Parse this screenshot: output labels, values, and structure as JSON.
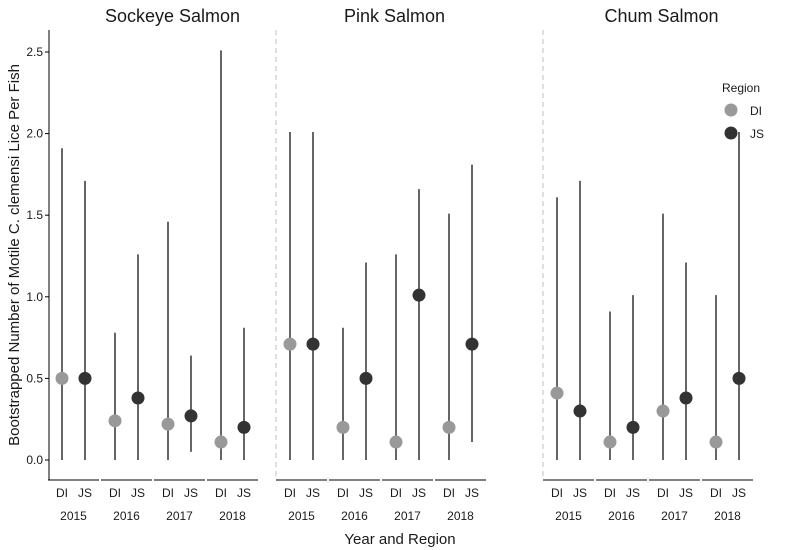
{
  "chart_data": {
    "type": "point-range",
    "ylabel": "Bootstrapped Number of Motile C. clemensi Lice Per Fish",
    "xlabel": "Year and Region",
    "ylim": [
      0,
      2.6
    ],
    "yticks": [
      "0.0",
      "0.5",
      "1.0",
      "1.5",
      "2.0",
      "2.5"
    ],
    "ytick_values": [
      0,
      0.5,
      1.0,
      1.5,
      2.0,
      2.5
    ],
    "years": [
      "2015",
      "2016",
      "2017",
      "2018"
    ],
    "regions": [
      "DI",
      "JS"
    ],
    "grid": false,
    "legend": {
      "title": "Region",
      "position": "top-right",
      "entries": [
        {
          "label": "DI",
          "color": "#999999"
        },
        {
          "label": "JS",
          "color": "#333333"
        }
      ]
    },
    "panels": [
      {
        "title": "Sockeye Salmon",
        "data": [
          {
            "year": "2015",
            "region": "DI",
            "mean": 0.5,
            "low": 0.0,
            "high": 1.91
          },
          {
            "year": "2015",
            "region": "JS",
            "mean": 0.5,
            "low": 0.0,
            "high": 1.71
          },
          {
            "year": "2016",
            "region": "DI",
            "mean": 0.24,
            "low": 0.0,
            "high": 0.78
          },
          {
            "year": "2016",
            "region": "JS",
            "mean": 0.38,
            "low": 0.0,
            "high": 1.26
          },
          {
            "year": "2017",
            "region": "DI",
            "mean": 0.22,
            "low": 0.0,
            "high": 1.46
          },
          {
            "year": "2017",
            "region": "JS",
            "mean": 0.27,
            "low": 0.05,
            "high": 0.64
          },
          {
            "year": "2018",
            "region": "DI",
            "mean": 0.11,
            "low": 0.0,
            "high": 2.51
          },
          {
            "year": "2018",
            "region": "JS",
            "mean": 0.2,
            "low": 0.0,
            "high": 0.81
          }
        ]
      },
      {
        "title": "Pink Salmon",
        "data": [
          {
            "year": "2015",
            "region": "DI",
            "mean": 0.71,
            "low": 0.0,
            "high": 2.01
          },
          {
            "year": "2015",
            "region": "JS",
            "mean": 0.71,
            "low": 0.0,
            "high": 2.01
          },
          {
            "year": "2016",
            "region": "DI",
            "mean": 0.2,
            "low": 0.0,
            "high": 0.81
          },
          {
            "year": "2016",
            "region": "JS",
            "mean": 0.5,
            "low": 0.0,
            "high": 1.21
          },
          {
            "year": "2017",
            "region": "DI",
            "mean": 0.11,
            "low": 0.0,
            "high": 1.26
          },
          {
            "year": "2017",
            "region": "JS",
            "mean": 1.01,
            "low": 0.0,
            "high": 1.66
          },
          {
            "year": "2018",
            "region": "DI",
            "mean": 0.2,
            "low": 0.0,
            "high": 1.51
          },
          {
            "year": "2018",
            "region": "JS",
            "mean": 0.71,
            "low": 0.11,
            "high": 1.81
          }
        ]
      },
      {
        "title": "Chum Salmon",
        "data": [
          {
            "year": "2015",
            "region": "DI",
            "mean": 0.41,
            "low": 0.0,
            "high": 1.61
          },
          {
            "year": "2015",
            "region": "JS",
            "mean": 0.3,
            "low": 0.0,
            "high": 1.71
          },
          {
            "year": "2016",
            "region": "DI",
            "mean": 0.11,
            "low": 0.0,
            "high": 0.91
          },
          {
            "year": "2016",
            "region": "JS",
            "mean": 0.2,
            "low": 0.0,
            "high": 1.01
          },
          {
            "year": "2017",
            "region": "DI",
            "mean": 0.3,
            "low": 0.0,
            "high": 1.51
          },
          {
            "year": "2017",
            "region": "JS",
            "mean": 0.38,
            "low": 0.0,
            "high": 1.21
          },
          {
            "year": "2018",
            "region": "DI",
            "mean": 0.11,
            "low": 0.0,
            "high": 1.01
          },
          {
            "year": "2018",
            "region": "JS",
            "mean": 0.5,
            "low": 0.0,
            "high": 2.01
          }
        ]
      }
    ]
  }
}
